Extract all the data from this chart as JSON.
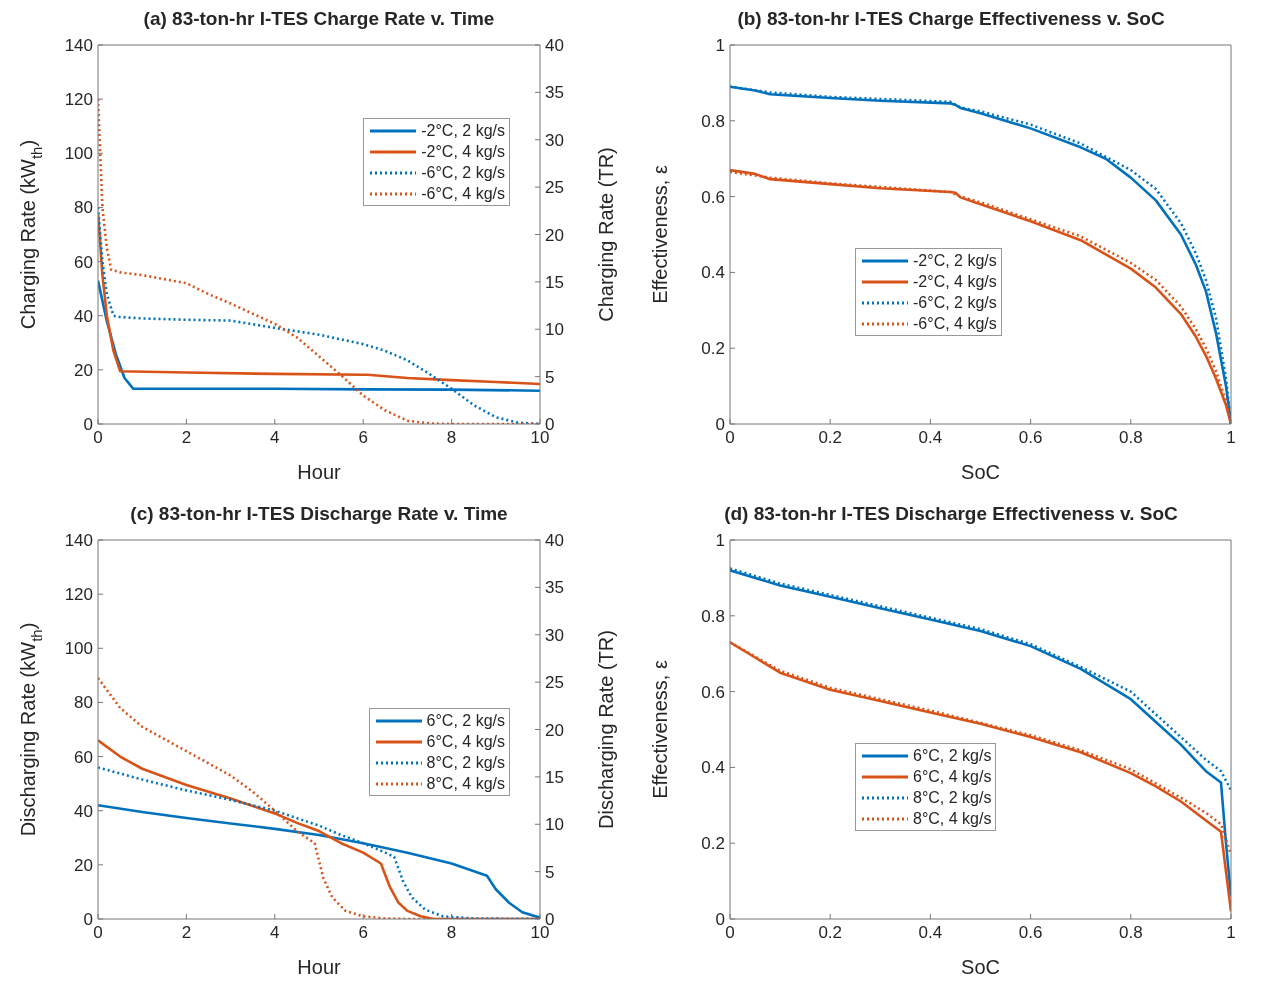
{
  "chart_data": [
    {
      "type": "line",
      "title": "(a) 83-ton-hr I-TES Charge Rate v. Time",
      "xlabel": "Hour",
      "ylabel": "Charging Rate (kW$_{th}$)",
      "y2label": "Charging Rate (TR)",
      "xlim": [
        0,
        10
      ],
      "xticks": [
        0,
        2,
        4,
        6,
        8,
        10
      ],
      "ylim": [
        0,
        140
      ],
      "yticks": [
        0,
        20,
        40,
        60,
        80,
        100,
        120,
        140
      ],
      "y2lim": [
        0,
        40
      ],
      "y2ticks": [
        0,
        5,
        10,
        15,
        20,
        25,
        30,
        35,
        40
      ],
      "legend": "top right",
      "series": [
        {
          "name": "-2°C, 2 kg/s",
          "color": "#0072bd",
          "line_style": "solid",
          "x": [
            0,
            0.2,
            0.4,
            0.6,
            0.8,
            2,
            4,
            6,
            8,
            10
          ],
          "values": [
            53,
            38,
            26,
            17,
            13,
            13,
            13,
            12.8,
            12.7,
            12.3
          ]
        },
        {
          "name": "-2°C, 4 kg/s",
          "color": "#d95319",
          "line_style": "solid",
          "x": [
            0,
            0.1,
            0.2,
            0.35,
            0.5,
            2,
            4,
            6,
            6.1,
            7,
            8,
            9,
            10
          ],
          "values": [
            78,
            55,
            40,
            27,
            19.5,
            19,
            18.5,
            18.2,
            18.2,
            17,
            16.2,
            15.5,
            14.8
          ]
        },
        {
          "name": "-6°C, 2 kg/s",
          "color": "#0072bd",
          "line_style": "dotted",
          "x": [
            0,
            0.1,
            0.2,
            0.35,
            0.5,
            1,
            2,
            3,
            4,
            5,
            6,
            6.5,
            7,
            7.5,
            8,
            8.5,
            9,
            9.5,
            10
          ],
          "values": [
            80,
            60,
            48,
            40,
            39.5,
            39,
            38.5,
            38.2,
            35.5,
            33,
            29.5,
            27,
            23.5,
            18.5,
            13,
            7,
            2.5,
            0.5,
            0
          ]
        },
        {
          "name": "-6°C, 4 kg/s",
          "color": "#d95319",
          "line_style": "dotted",
          "x": [
            0,
            0.05,
            0.1,
            0.2,
            0.3,
            0.5,
            1,
            2,
            2.5,
            3,
            4,
            4.5,
            5,
            5.5,
            6,
            6.5,
            7,
            7.5,
            8,
            10
          ],
          "values": [
            120,
            100,
            80,
            65,
            57,
            56,
            55,
            52,
            48,
            44.5,
            37,
            32,
            25,
            18,
            10.5,
            5,
            1.2,
            0.2,
            0,
            0
          ]
        }
      ]
    },
    {
      "type": "line",
      "title": "(b) 83-ton-hr I-TES Charge Effectiveness v. SoC",
      "xlabel": "SoC",
      "ylabel": "Effectiveness, ε",
      "xlim": [
        0,
        1
      ],
      "xticks": [
        0,
        0.2,
        0.4,
        0.6,
        0.8,
        1
      ],
      "ylim": [
        0,
        1
      ],
      "yticks": [
        0,
        0.2,
        0.4,
        0.6,
        0.8,
        1
      ],
      "legend": "center",
      "series": [
        {
          "name": "-2°C, 2 kg/s",
          "color": "#0072bd",
          "line_style": "solid",
          "x": [
            0,
            0.05,
            0.08,
            0.2,
            0.3,
            0.44,
            0.45,
            0.46,
            0.5,
            0.6,
            0.7,
            0.75,
            0.8,
            0.85,
            0.9,
            0.93,
            0.95,
            0.97,
            0.99,
            1
          ],
          "values": [
            0.89,
            0.88,
            0.87,
            0.86,
            0.853,
            0.846,
            0.842,
            0.834,
            0.82,
            0.78,
            0.73,
            0.7,
            0.65,
            0.59,
            0.5,
            0.42,
            0.35,
            0.24,
            0.1,
            0
          ]
        },
        {
          "name": "-2°C, 4 kg/s",
          "color": "#d95319",
          "line_style": "solid",
          "x": [
            0,
            0.05,
            0.08,
            0.2,
            0.3,
            0.44,
            0.45,
            0.46,
            0.5,
            0.6,
            0.7,
            0.8,
            0.85,
            0.9,
            0.93,
            0.95,
            0.97,
            0.99,
            1
          ],
          "values": [
            0.67,
            0.66,
            0.646,
            0.633,
            0.622,
            0.612,
            0.61,
            0.598,
            0.58,
            0.535,
            0.485,
            0.41,
            0.36,
            0.29,
            0.23,
            0.18,
            0.12,
            0.05,
            0
          ]
        },
        {
          "name": "-6°C, 2 kg/s",
          "color": "#0072bd",
          "line_style": "dotted",
          "x": [
            0,
            0.08,
            0.2,
            0.44,
            0.46,
            0.5,
            0.6,
            0.7,
            0.8,
            0.85,
            0.9,
            0.93,
            0.95,
            0.97,
            0.99,
            1
          ],
          "values": [
            0.89,
            0.875,
            0.863,
            0.85,
            0.835,
            0.825,
            0.79,
            0.74,
            0.67,
            0.62,
            0.53,
            0.45,
            0.38,
            0.28,
            0.12,
            0
          ]
        },
        {
          "name": "-6°C, 4 kg/s",
          "color": "#d95319",
          "line_style": "dotted",
          "x": [
            0,
            0.08,
            0.2,
            0.44,
            0.46,
            0.5,
            0.6,
            0.7,
            0.8,
            0.85,
            0.9,
            0.93,
            0.95,
            0.97,
            0.99,
            1
          ],
          "values": [
            0.665,
            0.65,
            0.635,
            0.612,
            0.6,
            0.585,
            0.54,
            0.495,
            0.425,
            0.38,
            0.31,
            0.25,
            0.2,
            0.14,
            0.06,
            0
          ]
        }
      ]
    },
    {
      "type": "line",
      "title": "(c) 83-ton-hr I-TES Discharge Rate v. Time",
      "xlabel": "Hour",
      "ylabel": "Discharging Rate (kW$_{th}$)",
      "y2label": "Discharging Rate (TR)",
      "xlim": [
        0,
        10
      ],
      "xticks": [
        0,
        2,
        4,
        6,
        8,
        10
      ],
      "ylim": [
        0,
        140
      ],
      "yticks": [
        0,
        20,
        40,
        60,
        80,
        100,
        120,
        140
      ],
      "y2lim": [
        0,
        40
      ],
      "y2ticks": [
        0,
        5,
        10,
        15,
        20,
        25,
        30,
        35,
        40
      ],
      "legend": "right",
      "series": [
        {
          "name": "6°C, 2 kg/s",
          "color": "#0072bd",
          "line_style": "solid",
          "x": [
            0,
            1,
            2,
            3,
            4,
            5,
            6,
            7,
            8,
            8.8,
            9,
            9.3,
            9.6,
            10
          ],
          "values": [
            42,
            39.5,
            37.3,
            35.3,
            33.3,
            31,
            28,
            24.5,
            20.5,
            16,
            11,
            6,
            2.5,
            0.5
          ]
        },
        {
          "name": "6°C, 4 kg/s",
          "color": "#d95319",
          "line_style": "solid",
          "x": [
            0,
            0.5,
            1,
            2,
            3,
            4,
            4.5,
            5,
            5.5,
            6,
            6.4,
            6.6,
            6.8,
            7,
            7.3,
            7.6,
            10
          ],
          "values": [
            66,
            60,
            55.5,
            49.5,
            44.5,
            39,
            35.5,
            32.5,
            28,
            24.5,
            20.5,
            12,
            6,
            3,
            1,
            0,
            0
          ]
        },
        {
          "name": "8°C, 2 kg/s",
          "color": "#0072bd",
          "line_style": "dotted",
          "x": [
            0,
            1,
            2,
            3,
            4,
            5,
            5.5,
            6,
            6.5,
            6.7,
            6.9,
            7.1,
            7.4,
            7.8,
            8.5,
            10
          ],
          "values": [
            56,
            51.5,
            47.5,
            44,
            40,
            34.5,
            31,
            28,
            24.5,
            23,
            14,
            8,
            3.5,
            1,
            0.2,
            0
          ]
        },
        {
          "name": "8°C, 4 kg/s",
          "color": "#d95319",
          "line_style": "dotted",
          "x": [
            0,
            0.5,
            1,
            2,
            3,
            3.5,
            4,
            4.5,
            4.9,
            5.1,
            5.3,
            5.6,
            6,
            6.5,
            7,
            10
          ],
          "values": [
            89,
            78,
            71,
            62,
            53,
            47,
            40,
            32.5,
            28,
            15,
            8,
            3,
            1,
            0.2,
            0,
            0
          ]
        }
      ]
    },
    {
      "type": "line",
      "title": "(d) 83-ton-hr I-TES Discharge Effectiveness v. SoC",
      "xlabel": "SoC",
      "ylabel": "Effectiveness, ε",
      "xlim": [
        0,
        1
      ],
      "xticks": [
        0,
        0.2,
        0.4,
        0.6,
        0.8,
        1
      ],
      "ylim": [
        0,
        1
      ],
      "yticks": [
        0,
        0.2,
        0.4,
        0.6,
        0.8,
        1
      ],
      "legend": "center",
      "series": [
        {
          "name": "6°C, 2 kg/s",
          "color": "#0072bd",
          "line_style": "solid",
          "x": [
            0,
            0.1,
            0.2,
            0.3,
            0.4,
            0.5,
            0.6,
            0.7,
            0.8,
            0.85,
            0.9,
            0.95,
            0.98,
            0.99,
            1
          ],
          "values": [
            0.92,
            0.88,
            0.85,
            0.82,
            0.79,
            0.76,
            0.72,
            0.66,
            0.58,
            0.52,
            0.46,
            0.39,
            0.36,
            0.2,
            0.06
          ]
        },
        {
          "name": "6°C, 4 kg/s",
          "color": "#d95319",
          "line_style": "solid",
          "x": [
            0,
            0.05,
            0.1,
            0.2,
            0.3,
            0.4,
            0.5,
            0.6,
            0.7,
            0.8,
            0.85,
            0.9,
            0.95,
            0.98,
            1
          ],
          "values": [
            0.73,
            0.69,
            0.65,
            0.605,
            0.575,
            0.545,
            0.515,
            0.48,
            0.44,
            0.385,
            0.35,
            0.31,
            0.26,
            0.23,
            0.02
          ]
        },
        {
          "name": "8°C, 2 kg/s",
          "color": "#0072bd",
          "line_style": "dotted",
          "x": [
            0,
            0.1,
            0.2,
            0.3,
            0.4,
            0.5,
            0.6,
            0.7,
            0.8,
            0.85,
            0.9,
            0.95,
            0.98,
            1
          ],
          "values": [
            0.925,
            0.885,
            0.855,
            0.825,
            0.795,
            0.765,
            0.725,
            0.665,
            0.6,
            0.54,
            0.48,
            0.42,
            0.39,
            0.34
          ]
        },
        {
          "name": "8°C, 4 kg/s",
          "color": "#d95319",
          "line_style": "dotted",
          "x": [
            0,
            0.1,
            0.2,
            0.4,
            0.6,
            0.7,
            0.8,
            0.9,
            0.95,
            0.98,
            1
          ],
          "values": [
            0.73,
            0.655,
            0.61,
            0.55,
            0.485,
            0.445,
            0.395,
            0.32,
            0.28,
            0.25,
            0.17
          ]
        }
      ]
    }
  ]
}
